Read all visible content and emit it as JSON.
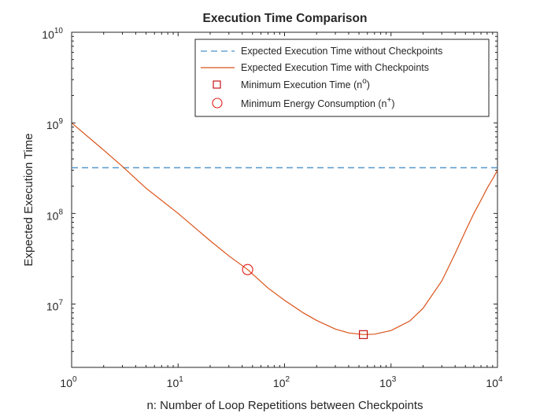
{
  "chart_data": {
    "type": "line",
    "title": "Execution Time Comparison",
    "xlabel": "n: Number of Loop Repetitions between Checkpoints",
    "ylabel": "Expected Execution Time",
    "x_scale": "log",
    "y_scale": "log",
    "xlim": [
      1,
      10000
    ],
    "ylim": [
      2000000,
      10000000000
    ],
    "x_ticks": [
      {
        "base": "10",
        "exp": "0",
        "value": 1
      },
      {
        "base": "10",
        "exp": "1",
        "value": 10
      },
      {
        "base": "10",
        "exp": "2",
        "value": 100
      },
      {
        "base": "10",
        "exp": "3",
        "value": 1000
      },
      {
        "base": "10",
        "exp": "4",
        "value": 10000
      }
    ],
    "y_ticks": [
      {
        "base": "10",
        "exp": "7",
        "value": 10000000
      },
      {
        "base": "10",
        "exp": "8",
        "value": 100000000
      },
      {
        "base": "10",
        "exp": "9",
        "value": 1000000000
      },
      {
        "base": "10",
        "exp": "10",
        "value": 10000000000
      }
    ],
    "grid": false,
    "legend_position": "top-right",
    "series": [
      {
        "name": "Expected Execution Time without Checkpoints",
        "style": "dashed",
        "color": "#4a90c8",
        "x": [
          1,
          10000
        ],
        "y": [
          320000000,
          320000000
        ]
      },
      {
        "name": "Expected Execution Time with Checkpoints",
        "style": "solid",
        "color": "#d95319",
        "x": [
          1,
          2,
          3,
          5,
          10,
          20,
          30,
          45,
          70,
          100,
          150,
          200,
          300,
          400,
          550,
          700,
          1000,
          1500,
          2000,
          3000,
          4000,
          5000,
          6000,
          7000,
          8000,
          9000,
          10000
        ],
        "y": [
          1000000000,
          500000000,
          330000000,
          190000000,
          100000000,
          50000000,
          34000000,
          24000000,
          15000000,
          11000000,
          8000000,
          6600000,
          5300000,
          4800000,
          4600000,
          4650000,
          5100000,
          6500000,
          9000000,
          18000000,
          36000000,
          64000000,
          100000000,
          140000000,
          190000000,
          240000000,
          300000000
        ]
      }
    ],
    "markers": [
      {
        "name": "Minimum Execution Time",
        "label_base": "Minimum Execution Time (n",
        "label_sup": "o",
        "label_end": ")",
        "shape": "square",
        "color": "#c00000",
        "x": 550,
        "y": 4600000
      },
      {
        "name": "Minimum Energy Consumption",
        "label_base": "Minimum Energy Consumption (n",
        "label_sup": "+",
        "label_end": ")",
        "shape": "circle",
        "color": "#e31a1a",
        "x": 45,
        "y": 24000000
      }
    ]
  }
}
